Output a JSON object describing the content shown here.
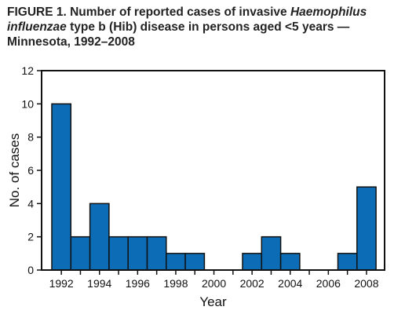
{
  "figure": {
    "label": "FIGURE 1.",
    "title_part1": "Number of reported cases of invasive",
    "title_italic1": "Haemophilus influenzae",
    "title_part2": "type b (Hib) disease in persons aged <5 years — Minnesota, 1992–2008"
  },
  "chart_data": {
    "type": "bar",
    "title": "Number of reported cases of invasive Haemophilus influenzae type b (Hib) disease in persons aged <5 years — Minnesota, 1992–2008",
    "xlabel": "Year",
    "ylabel": "No. of cases",
    "categories": [
      1992,
      1993,
      1994,
      1995,
      1996,
      1997,
      1998,
      1999,
      2000,
      2001,
      2002,
      2003,
      2004,
      2005,
      2006,
      2007,
      2008
    ],
    "values": [
      10,
      2,
      4,
      2,
      2,
      2,
      1,
      1,
      0,
      0,
      1,
      2,
      1,
      0,
      0,
      1,
      5
    ],
    "ylim": [
      0,
      12
    ],
    "yticks": [
      0,
      2,
      4,
      6,
      8,
      10,
      12
    ],
    "xtick_labels": [
      "1992",
      "1994",
      "1996",
      "1998",
      "2000",
      "2002",
      "2004",
      "2006",
      "2008"
    ],
    "grid": false,
    "bar_color": "#0c6cb5"
  }
}
